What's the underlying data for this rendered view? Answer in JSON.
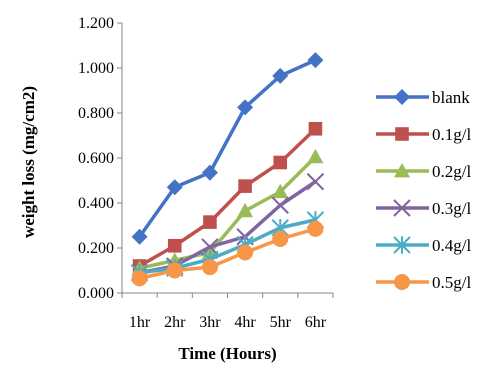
{
  "chart_data": {
    "type": "line",
    "x": [
      "1hr",
      "2hr",
      "3hr",
      "4hr",
      "5hr",
      "6hr"
    ],
    "xlabel": "Time (Hours)",
    "ylabel": "weight loss (mg/cm2)",
    "ylim": [
      0,
      1.2
    ],
    "yticks": [
      "0.000",
      "0.200",
      "0.400",
      "0.600",
      "0.800",
      "1.000",
      "1.200"
    ],
    "grid": false,
    "legend_position": "right",
    "series": [
      {
        "name": "blank",
        "values": [
          0.25,
          0.47,
          0.535,
          0.825,
          0.965,
          1.035
        ],
        "color": "#4472C4",
        "marker": "diamond"
      },
      {
        "name": "0.1g/l",
        "values": [
          0.12,
          0.21,
          0.315,
          0.475,
          0.58,
          0.73
        ],
        "color": "#C0504D",
        "marker": "square"
      },
      {
        "name": "0.2g/l",
        "values": [
          0.11,
          0.145,
          0.18,
          0.365,
          0.45,
          0.605
        ],
        "color": "#9BBB59",
        "marker": "triangle"
      },
      {
        "name": "0.3g/l",
        "values": [
          0.09,
          0.12,
          0.205,
          0.25,
          0.39,
          0.495
        ],
        "color": "#8064A2",
        "marker": "x"
      },
      {
        "name": "0.4g/l",
        "values": [
          0.09,
          0.11,
          0.15,
          0.215,
          0.29,
          0.325
        ],
        "color": "#4BACC6",
        "marker": "asterisk"
      },
      {
        "name": "0.5g/l",
        "values": [
          0.065,
          0.1,
          0.115,
          0.18,
          0.24,
          0.285
        ],
        "color": "#F79646",
        "marker": "circle"
      }
    ]
  }
}
